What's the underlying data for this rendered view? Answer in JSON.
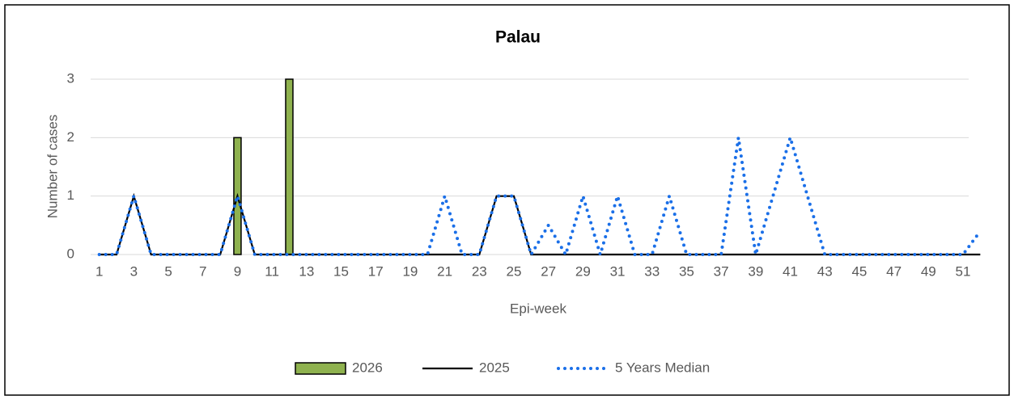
{
  "chart_data": {
    "type": "bar-line",
    "title": "Palau",
    "x_label": "Epi-week",
    "y_label": "Number of cases",
    "categories": [
      "1",
      null,
      "3",
      null,
      "5",
      null,
      "7",
      null,
      "9",
      null,
      "11",
      null,
      "13",
      null,
      "15",
      null,
      "17",
      null,
      "19",
      null,
      "21",
      null,
      "23",
      null,
      "25",
      null,
      "27",
      null,
      "29",
      null,
      "31",
      null,
      "33",
      null,
      "35",
      null,
      "37",
      null,
      "39",
      null,
      "41",
      null,
      "43",
      null,
      "45",
      null,
      "47",
      null,
      "49",
      null,
      "51",
      null
    ],
    "ylim": [
      0,
      3
    ],
    "yticks": [
      0,
      1,
      2,
      3
    ],
    "grid": true,
    "series": [
      {
        "name": "2026",
        "kind": "bar",
        "color": "#8fb24f",
        "values": [
          0,
          0,
          0,
          0,
          0,
          0,
          0,
          0,
          2,
          0,
          0,
          3,
          null,
          null,
          null,
          null,
          null,
          null,
          null,
          null,
          null,
          null,
          null,
          null,
          null,
          null,
          null,
          null,
          null,
          null,
          null,
          null,
          null,
          null,
          null,
          null,
          null,
          null,
          null,
          null,
          null,
          null,
          null,
          null,
          null,
          null,
          null,
          null,
          null,
          null,
          null,
          null
        ]
      },
      {
        "name": "2025",
        "kind": "line",
        "color": "#000000",
        "values": [
          0,
          0,
          1,
          0,
          0,
          0,
          0,
          0,
          1,
          0,
          0,
          0,
          0,
          0,
          0,
          0,
          0,
          0,
          0,
          0,
          0,
          0,
          0,
          1,
          1,
          0,
          0,
          0,
          0,
          0,
          0,
          0,
          0,
          0,
          0,
          0,
          0,
          0,
          0,
          0,
          0,
          0,
          0,
          0,
          0,
          0,
          0,
          0,
          0,
          0,
          0,
          0
        ]
      },
      {
        "name": "5 Years Median",
        "kind": "dotted",
        "color": "#1a6fe8",
        "values": [
          0,
          0,
          1,
          0,
          0,
          0,
          0,
          0,
          1,
          0,
          0,
          0,
          0,
          0,
          0,
          0,
          0,
          0,
          0,
          0,
          1,
          0,
          0,
          1,
          1,
          0,
          0.5,
          0,
          1,
          0,
          1,
          0,
          0,
          1,
          0,
          0,
          0,
          2,
          0,
          1,
          2,
          1,
          0,
          0,
          0,
          0,
          0,
          0,
          0,
          0,
          0,
          0.4
        ]
      }
    ]
  }
}
